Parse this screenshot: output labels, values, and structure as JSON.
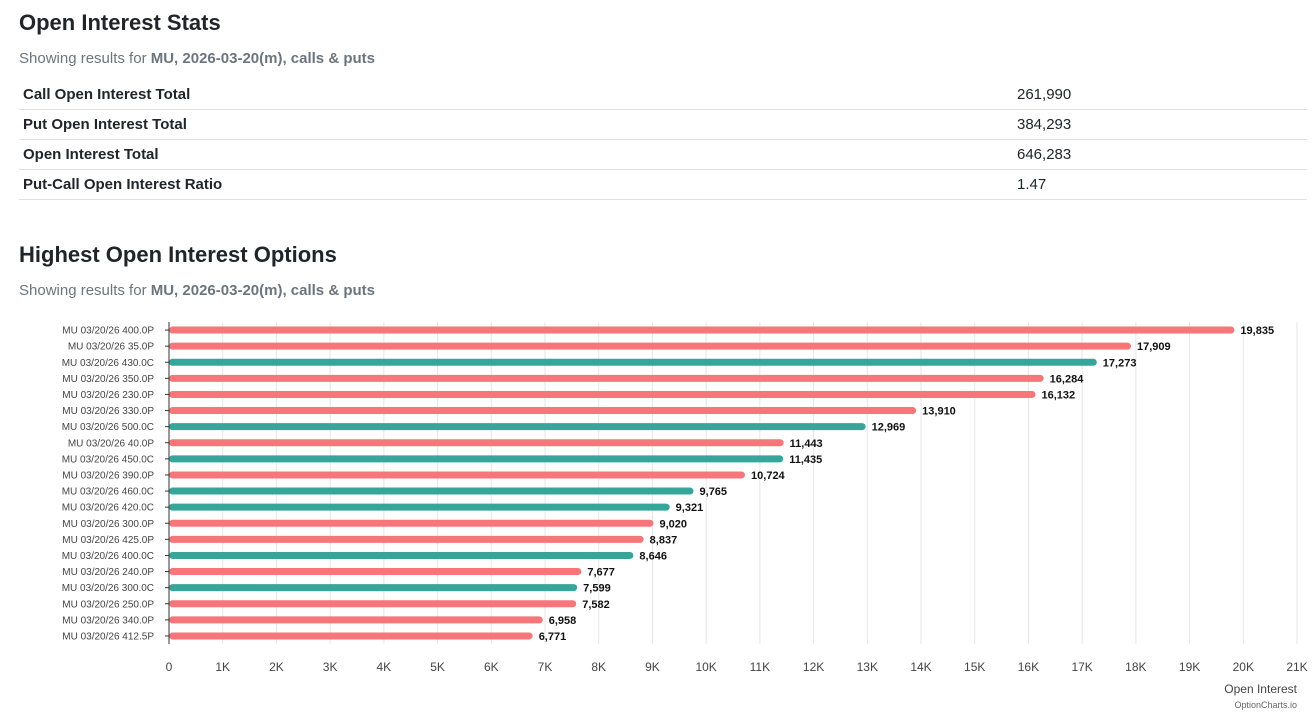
{
  "stats": {
    "title": "Open Interest Stats",
    "subtitle_prefix": "Showing results for ",
    "subtitle_bold": "MU, 2026-03-20(m), calls & puts",
    "rows": [
      {
        "label": "Call Open Interest Total",
        "value": "261,990"
      },
      {
        "label": "Put Open Interest Total",
        "value": "384,293"
      },
      {
        "label": "Open Interest Total",
        "value": "646,283"
      },
      {
        "label": "Put-Call Open Interest Ratio",
        "value": "1.47"
      }
    ]
  },
  "highest": {
    "title": "Highest Open Interest Options",
    "subtitle_prefix": "Showing results for ",
    "subtitle_bold": "MU, 2026-03-20(m), calls & puts"
  },
  "colors": {
    "call": "#36a69a",
    "put": "#f7767a",
    "grid": "#e6e6e6",
    "axis": "#333333"
  },
  "chart_data": {
    "type": "bar",
    "orientation": "horizontal",
    "categories": [
      "MU 03/20/26 400.0P",
      "MU 03/20/26 35.0P",
      "MU 03/20/26 430.0C",
      "MU 03/20/26 350.0P",
      "MU 03/20/26 230.0P",
      "MU 03/20/26 330.0P",
      "MU 03/20/26 500.0C",
      "MU 03/20/26 40.0P",
      "MU 03/20/26 450.0C",
      "MU 03/20/26 390.0P",
      "MU 03/20/26 460.0C",
      "MU 03/20/26 420.0C",
      "MU 03/20/26 300.0P",
      "MU 03/20/26 425.0P",
      "MU 03/20/26 400.0C",
      "MU 03/20/26 240.0P",
      "MU 03/20/26 300.0C",
      "MU 03/20/26 250.0P",
      "MU 03/20/26 340.0P",
      "MU 03/20/26 412.5P"
    ],
    "values": [
      19835,
      17909,
      17273,
      16284,
      16132,
      13910,
      12969,
      11443,
      11435,
      10724,
      9765,
      9321,
      9020,
      8837,
      8646,
      7677,
      7599,
      7582,
      6958,
      6771
    ],
    "value_labels": [
      "19,835",
      "17,909",
      "17,273",
      "16,284",
      "16,132",
      "13,910",
      "12,969",
      "11,443",
      "11,435",
      "10,724",
      "9,765",
      "9,321",
      "9,020",
      "8,837",
      "8,646",
      "7,677",
      "7,599",
      "7,582",
      "6,958",
      "6,771"
    ],
    "option_types": [
      "P",
      "P",
      "C",
      "P",
      "P",
      "P",
      "C",
      "P",
      "C",
      "P",
      "C",
      "C",
      "P",
      "P",
      "C",
      "P",
      "C",
      "P",
      "P",
      "P"
    ],
    "xlim": [
      0,
      21000
    ],
    "x_ticks": [
      0,
      1000,
      2000,
      3000,
      4000,
      5000,
      6000,
      7000,
      8000,
      9000,
      10000,
      11000,
      12000,
      13000,
      14000,
      15000,
      16000,
      17000,
      18000,
      19000,
      20000,
      21000
    ],
    "x_tick_labels": [
      "0",
      "1K",
      "2K",
      "3K",
      "4K",
      "5K",
      "6K",
      "7K",
      "8K",
      "9K",
      "10K",
      "11K",
      "12K",
      "13K",
      "14K",
      "15K",
      "16K",
      "17K",
      "18K",
      "19K",
      "20K",
      "21K"
    ],
    "xlabel": "Open Interest",
    "credit": "OptionCharts.io",
    "grid": true
  }
}
